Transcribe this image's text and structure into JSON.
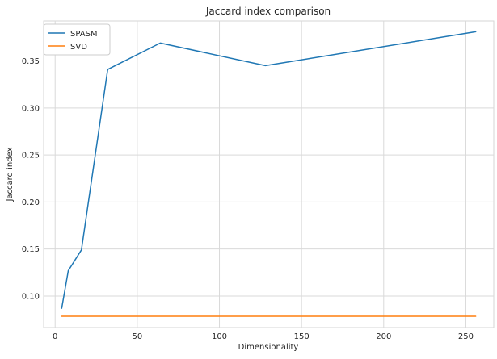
{
  "chart_data": {
    "type": "line",
    "title": "Jaccard index comparison",
    "xlabel": "Dimensionality",
    "ylabel": "Jaccard index",
    "xlim": [
      -7,
      267
    ],
    "ylim": [
      0.0665,
      0.3925
    ],
    "xticks": [
      0,
      50,
      100,
      150,
      200,
      250
    ],
    "yticks": [
      0.1,
      0.15,
      0.2,
      0.25,
      0.3,
      0.35
    ],
    "grid": true,
    "legend_position": "top-left",
    "series": [
      {
        "name": "SPASM",
        "color": "#1f77b4",
        "x": [
          4,
          8,
          16,
          32,
          64,
          128,
          256
        ],
        "y": [
          0.087,
          0.127,
          0.149,
          0.341,
          0.369,
          0.345,
          0.381
        ]
      },
      {
        "name": "SVD",
        "color": "#ff7f0e",
        "x": [
          4,
          8,
          16,
          32,
          64,
          128,
          256
        ],
        "y": [
          0.0785,
          0.0785,
          0.0785,
          0.0785,
          0.0785,
          0.0785,
          0.0785
        ]
      }
    ]
  }
}
